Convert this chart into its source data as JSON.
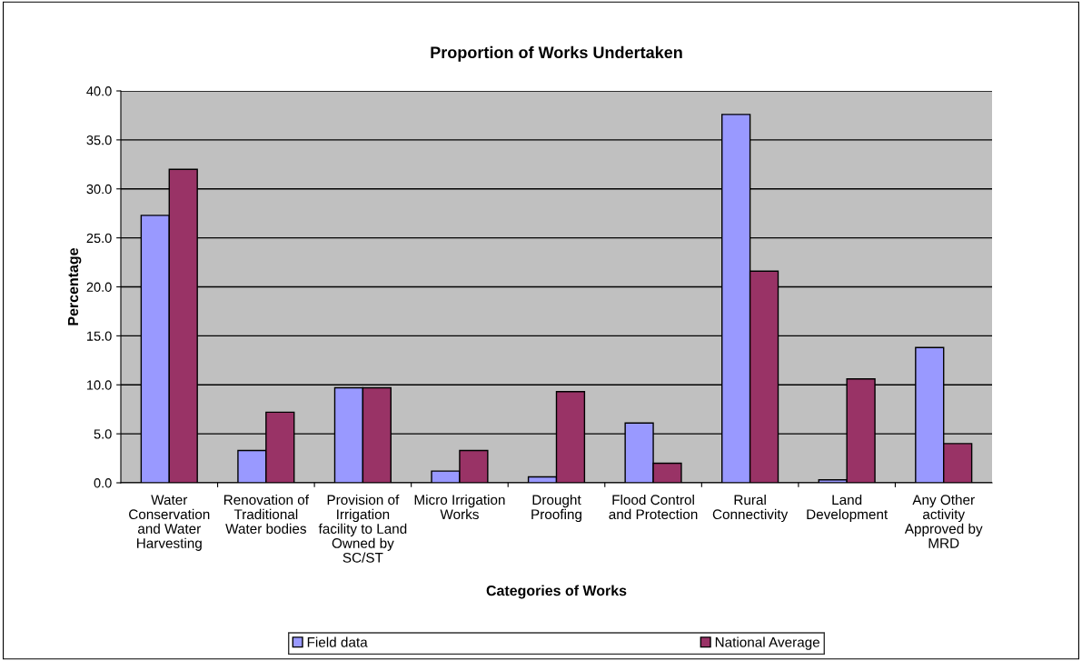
{
  "chart_data": {
    "type": "bar",
    "title": "Proportion of Works Undertaken",
    "xlabel": "Categories of Works",
    "ylabel": "Percentage",
    "categories": [
      "Water Conservation and Water Harvesting",
      "Renovation of Traditional Water bodies",
      "Provision of Irrigation facility to Land Owned by SC/ST",
      "Micro Irrigation Works",
      "Drought Proofing",
      "Flood Control and Protection",
      "Rural Connectivity",
      "Land Development",
      "Any Other activity Approved by MRD"
    ],
    "series": [
      {
        "name": "Field data",
        "color": "#9999ff",
        "values": [
          27.3,
          3.3,
          9.7,
          1.2,
          0.6,
          6.1,
          37.6,
          0.3,
          13.8
        ]
      },
      {
        "name": "National Average",
        "color": "#993366",
        "values": [
          32.0,
          7.2,
          9.7,
          3.3,
          9.3,
          2.0,
          21.6,
          10.6,
          4.0
        ]
      }
    ],
    "ylim": [
      0,
      40
    ],
    "yticks": [
      {
        "value": 0,
        "label": "0.0"
      },
      {
        "value": 5,
        "label": "5.0"
      },
      {
        "value": 10,
        "label": "10.0"
      },
      {
        "value": 15,
        "label": "15.0"
      },
      {
        "value": 20,
        "label": "20.0"
      },
      {
        "value": 25,
        "label": "25.0"
      },
      {
        "value": 30,
        "label": "30.0"
      },
      {
        "value": 35,
        "label": "35.0"
      },
      {
        "value": 40,
        "label": "40.0"
      }
    ],
    "grid": "y",
    "legend": "bottom"
  }
}
